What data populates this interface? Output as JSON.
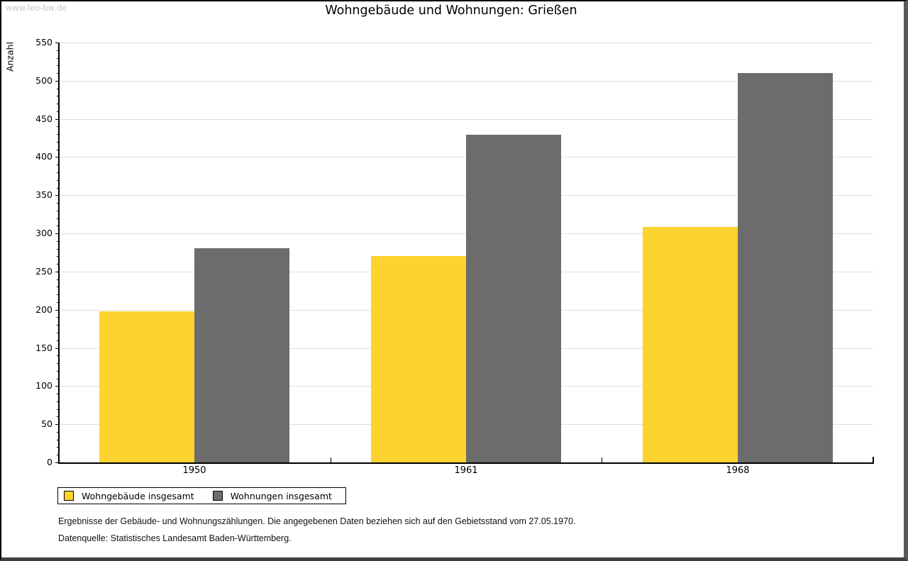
{
  "window": {
    "watermark": "www.leo-bw.de"
  },
  "title": "Wohngebäude und Wohnungen: Grießen",
  "chart_data": {
    "type": "bar",
    "title": "Wohngebäude und Wohnungen: Grießen",
    "xlabel": "",
    "ylabel": "Anzahl",
    "categories": [
      "1950",
      "1961",
      "1968"
    ],
    "series": [
      {
        "name": "Wohngebäude insgesamt",
        "color": "#FCD32F",
        "values": [
          198,
          270,
          308
        ]
      },
      {
        "name": "Wohnungen insgesamt",
        "color": "#6C6C6C",
        "values": [
          281,
          429,
          510
        ]
      }
    ],
    "ylim": [
      0,
      550
    ],
    "y_major_ticks": [
      0,
      50,
      100,
      150,
      200,
      250,
      300,
      350,
      400,
      450,
      500,
      550
    ],
    "y_minor_step": 10,
    "grid": "horizontal-major",
    "legend_position": "bottom-left",
    "gridline_color": "#e0e0e0"
  },
  "footer": {
    "line1": "Ergebnisse der Gebäude- und Wohnungszählungen. Die angegebenen Daten beziehen sich auf den Gebietsstand vom 27.05.1970.",
    "line2": "Datenquelle: Statistisches Landesamt Baden-Württemberg."
  }
}
